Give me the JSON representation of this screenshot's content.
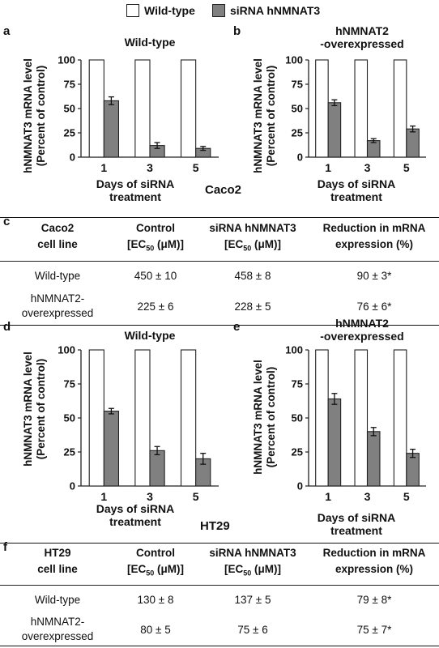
{
  "legend": [
    {
      "label": "Wild-type",
      "color": "#ffffff"
    },
    {
      "label": "siRNA hNMNAT3",
      "color": "#808080"
    }
  ],
  "panel_letters": {
    "a": "a",
    "b": "b",
    "c": "c",
    "d": "d",
    "e": "e",
    "f": "f"
  },
  "cell_lines": {
    "caco2": "Caco2",
    "ht29": "HT29"
  },
  "chart_data": [
    {
      "id": "a",
      "type": "bar",
      "title": "Wild-type",
      "ylabel_line1": "hNMNAT3 mRNA level",
      "ylabel_line2": "(Percent of control)",
      "xlabel_line1": "Days of siRNA",
      "xlabel_line2": "treatment",
      "categories": [
        "1",
        "3",
        "5"
      ],
      "ylim": [
        0,
        100
      ],
      "yticks": [
        0,
        25,
        50,
        75,
        100
      ],
      "series": [
        {
          "name": "Wild-type",
          "values": [
            100,
            100,
            100
          ],
          "errors": [
            0,
            0,
            0
          ]
        },
        {
          "name": "siRNA hNMNAT3",
          "values": [
            58,
            12,
            9
          ],
          "errors": [
            4,
            3,
            2
          ]
        }
      ]
    },
    {
      "id": "b",
      "type": "bar",
      "title_line1": "hNMNAT2",
      "title_line2": "-overexpressed",
      "ylabel_line1": "hNMNAT3 mRNA level",
      "ylabel_line2": "(Percent of control)",
      "xlabel_line1": "Days of siRNA",
      "xlabel_line2": "treatment",
      "categories": [
        "1",
        "3",
        "5"
      ],
      "ylim": [
        0,
        100
      ],
      "yticks": [
        0,
        25,
        50,
        75,
        100
      ],
      "series": [
        {
          "name": "Wild-type",
          "values": [
            100,
            100,
            100
          ],
          "errors": [
            0,
            0,
            0
          ]
        },
        {
          "name": "siRNA hNMNAT3",
          "values": [
            56,
            17,
            29
          ],
          "errors": [
            3,
            2,
            3
          ]
        }
      ]
    },
    {
      "id": "d",
      "type": "bar",
      "title": "Wild-type",
      "ylabel_line1": "hNMNAT3 mRNA level",
      "ylabel_line2": "(Percent of control)",
      "xlabel_line1": "Days of siRNA",
      "xlabel_line2": "treatment",
      "categories": [
        "1",
        "3",
        "5"
      ],
      "ylim": [
        0,
        100
      ],
      "yticks": [
        0,
        25,
        50,
        75,
        100
      ],
      "series": [
        {
          "name": "Wild-type",
          "values": [
            100,
            100,
            100
          ],
          "errors": [
            0,
            0,
            0
          ]
        },
        {
          "name": "siRNA hNMNAT3",
          "values": [
            55,
            26,
            20
          ],
          "errors": [
            2,
            3,
            4
          ]
        }
      ]
    },
    {
      "id": "e",
      "type": "bar",
      "title_line1": "hNMNAT2",
      "title_line2": "-overexpressed",
      "ylabel_line1": "hNMNAT3 mRNA level",
      "ylabel_line2": "(Percent of control)",
      "xlabel_line1": "Days of siRNA",
      "xlabel_line2": "treatment",
      "categories": [
        "1",
        "3",
        "5"
      ],
      "ylim": [
        0,
        100
      ],
      "yticks": [
        0,
        25,
        50,
        75,
        100
      ],
      "series": [
        {
          "name": "Wild-type",
          "values": [
            100,
            100,
            100
          ],
          "errors": [
            0,
            0,
            0
          ]
        },
        {
          "name": "siRNA hNMNAT3",
          "values": [
            64,
            40,
            24
          ],
          "errors": [
            4,
            3,
            3
          ]
        }
      ]
    }
  ],
  "table_c": {
    "headers": [
      {
        "l1": "Caco2",
        "l2": "cell line"
      },
      {
        "l1": "Control",
        "l2a": "[EC",
        "l2sub": "50",
        "l2b": " (μM)]"
      },
      {
        "l1": "siRNA hNMNAT3",
        "l2a": "[EC",
        "l2sub": "50",
        "l2b": " (μM)]"
      },
      {
        "l1": "Reduction in mRNA",
        "l2": "expression (%)"
      }
    ],
    "rows": [
      {
        "line1": "Wild-type",
        "line2": "",
        "control": "450 ± 10",
        "sirna": "458 ± 8",
        "reduction": "90 ± 3*"
      },
      {
        "line1": "hNMNAT2-",
        "line2": "overexpressed",
        "control": "225 ± 6",
        "sirna": "228 ± 5",
        "reduction": "76 ± 6*"
      }
    ]
  },
  "table_f": {
    "headers": [
      {
        "l1": "HT29",
        "l2": "cell line"
      },
      {
        "l1": "Control",
        "l2a": "[EC",
        "l2sub": "50",
        "l2b": " (μM)]"
      },
      {
        "l1": "siRNA hNMNAT3",
        "l2a": "[EC",
        "l2sub": "50",
        "l2b": " (μM)]"
      },
      {
        "l1": "Reduction in mRNA",
        "l2": "expression (%)"
      }
    ],
    "rows": [
      {
        "line1": "Wild-type",
        "line2": "",
        "control": "130 ± 8",
        "sirna": "137 ± 5",
        "reduction": "79 ± 8*"
      },
      {
        "line1": "hNMNAT2-",
        "line2": "overexpressed",
        "control": "80 ± 5",
        "sirna": "75 ± 6",
        "reduction": "75 ± 7*"
      }
    ]
  }
}
